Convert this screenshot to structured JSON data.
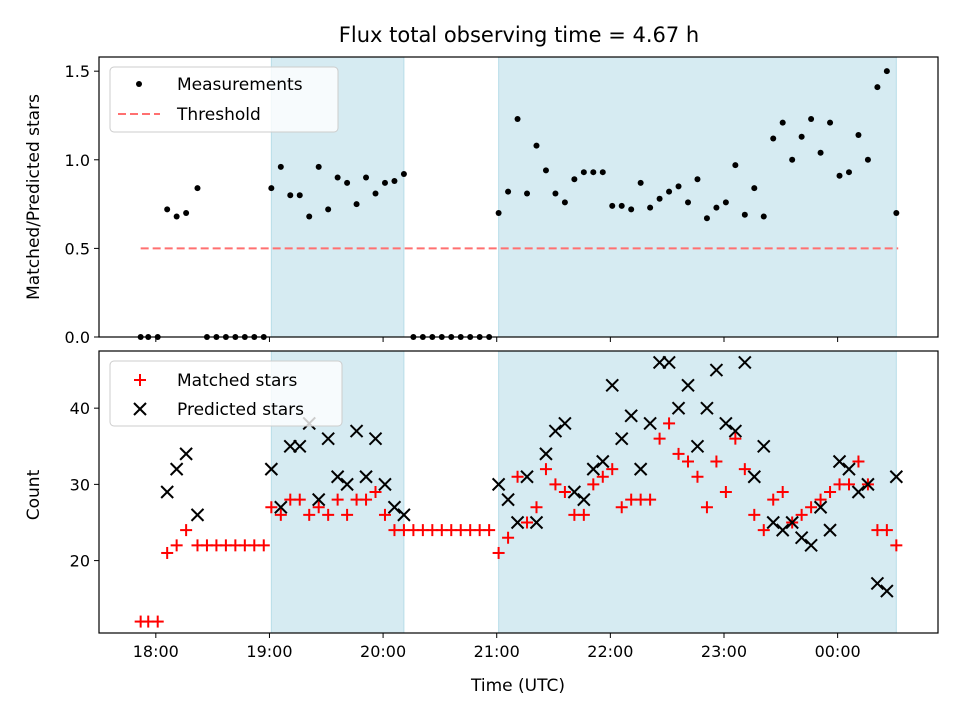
{
  "chart_data": [
    {
      "type": "scatter",
      "title": "Flux total observing time = 4.67 h",
      "ylabel": "Matched/Predicted stars",
      "xlabel": "",
      "ylim": [
        0,
        1.58
      ],
      "yticks": [
        0.0,
        0.5,
        1.0,
        1.5
      ],
      "ytick_labels": [
        "0.0",
        "0.5",
        "1.0",
        "1.5"
      ],
      "legend": {
        "placement": "top-left",
        "entries": [
          "Measurements",
          "Threshold"
        ]
      },
      "threshold": {
        "name": "Threshold",
        "y": 0.5,
        "x_range": [
          "17:52",
          "00:32"
        ],
        "color": "#ff7070",
        "style": "dashed"
      },
      "series": [
        {
          "name": "Measurements",
          "marker": "dot",
          "color": "#000000",
          "points": [
            [
              "17:52",
              0
            ],
            [
              "17:56",
              0
            ],
            [
              "18:01",
              0
            ],
            [
              "18:06",
              0.72
            ],
            [
              "18:11",
              0.68
            ],
            [
              "18:16",
              0.7
            ],
            [
              "18:22",
              0.84
            ],
            [
              "18:27",
              0
            ],
            [
              "18:32",
              0
            ],
            [
              "18:37",
              0
            ],
            [
              "18:42",
              0
            ],
            [
              "18:47",
              0
            ],
            [
              "18:52",
              0
            ],
            [
              "18:57",
              0
            ],
            [
              "19:01",
              0.84
            ],
            [
              "19:06",
              0.96
            ],
            [
              "19:11",
              0.8
            ],
            [
              "19:16",
              0.8
            ],
            [
              "19:21",
              0.68
            ],
            [
              "19:26",
              0.96
            ],
            [
              "19:31",
              0.72
            ],
            [
              "19:36",
              0.9
            ],
            [
              "19:41",
              0.87
            ],
            [
              "19:46",
              0.75
            ],
            [
              "19:51",
              0.9
            ],
            [
              "19:56",
              0.81
            ],
            [
              "20:01",
              0.87
            ],
            [
              "20:06",
              0.88
            ],
            [
              "20:11",
              0.92
            ],
            [
              "20:16",
              0
            ],
            [
              "20:21",
              0
            ],
            [
              "20:26",
              0
            ],
            [
              "20:31",
              0
            ],
            [
              "20:36",
              0
            ],
            [
              "20:41",
              0
            ],
            [
              "20:46",
              0
            ],
            [
              "20:51",
              0
            ],
            [
              "20:56",
              0
            ],
            [
              "21:01",
              0.7
            ],
            [
              "21:06",
              0.82
            ],
            [
              "21:11",
              1.23
            ],
            [
              "21:16",
              0.81
            ],
            [
              "21:21",
              1.08
            ],
            [
              "21:26",
              0.94
            ],
            [
              "21:31",
              0.81
            ],
            [
              "21:36",
              0.76
            ],
            [
              "21:41",
              0.89
            ],
            [
              "21:46",
              0.93
            ],
            [
              "21:51",
              0.93
            ],
            [
              "21:56",
              0.93
            ],
            [
              "22:01",
              0.74
            ],
            [
              "22:06",
              0.74
            ],
            [
              "22:11",
              0.72
            ],
            [
              "22:16",
              0.87
            ],
            [
              "22:21",
              0.73
            ],
            [
              "22:26",
              0.78
            ],
            [
              "22:31",
              0.82
            ],
            [
              "22:36",
              0.85
            ],
            [
              "22:41",
              0.76
            ],
            [
              "22:46",
              0.89
            ],
            [
              "22:51",
              0.67
            ],
            [
              "22:56",
              0.73
            ],
            [
              "23:01",
              0.76
            ],
            [
              "23:06",
              0.97
            ],
            [
              "23:11",
              0.69
            ],
            [
              "23:16",
              0.84
            ],
            [
              "23:21",
              0.68
            ],
            [
              "23:26",
              1.12
            ],
            [
              "23:31",
              1.21
            ],
            [
              "23:36",
              1.0
            ],
            [
              "23:41",
              1.13
            ],
            [
              "23:46",
              1.23
            ],
            [
              "23:51",
              1.04
            ],
            [
              "23:56",
              1.21
            ],
            [
              "00:01",
              0.91
            ],
            [
              "00:06",
              0.93
            ],
            [
              "00:11",
              1.14
            ],
            [
              "00:16",
              1.0
            ],
            [
              "00:21",
              1.41
            ],
            [
              "00:26",
              1.5
            ],
            [
              "00:31",
              0.7
            ]
          ]
        }
      ]
    },
    {
      "type": "scatter",
      "title": "",
      "ylabel": "Count",
      "xlabel": "Time (UTC)",
      "ylim": [
        10.5,
        47.5
      ],
      "yticks": [
        20,
        30,
        40
      ],
      "ytick_labels": [
        "20",
        "30",
        "40"
      ],
      "xticks": [
        "18:00",
        "19:00",
        "20:00",
        "21:00",
        "22:00",
        "23:00",
        "00:00"
      ],
      "xlim": [
        "17:30",
        "00:53"
      ],
      "legend": {
        "placement": "top-left",
        "entries": [
          "Matched stars",
          "Predicted stars"
        ]
      },
      "shaded_intervals": [
        [
          "19:01",
          "20:11"
        ],
        [
          "21:01",
          "00:31"
        ]
      ],
      "series": [
        {
          "name": "Matched stars",
          "marker": "plus",
          "color": "#ff0000",
          "points": [
            [
              "17:52",
              12
            ],
            [
              "17:56",
              12
            ],
            [
              "18:01",
              12
            ],
            [
              "18:06",
              21
            ],
            [
              "18:11",
              22
            ],
            [
              "18:16",
              24
            ],
            [
              "18:22",
              22
            ],
            [
              "18:27",
              22
            ],
            [
              "18:32",
              22
            ],
            [
              "18:37",
              22
            ],
            [
              "18:42",
              22
            ],
            [
              "18:47",
              22
            ],
            [
              "18:52",
              22
            ],
            [
              "18:57",
              22
            ],
            [
              "19:01",
              27
            ],
            [
              "19:06",
              26
            ],
            [
              "19:11",
              28
            ],
            [
              "19:16",
              28
            ],
            [
              "19:21",
              26
            ],
            [
              "19:26",
              27
            ],
            [
              "19:31",
              26
            ],
            [
              "19:36",
              28
            ],
            [
              "19:41",
              26
            ],
            [
              "19:46",
              28
            ],
            [
              "19:51",
              28
            ],
            [
              "19:56",
              29
            ],
            [
              "20:01",
              26
            ],
            [
              "20:06",
              24
            ],
            [
              "20:11",
              24
            ],
            [
              "20:16",
              24
            ],
            [
              "20:21",
              24
            ],
            [
              "20:26",
              24
            ],
            [
              "20:31",
              24
            ],
            [
              "20:36",
              24
            ],
            [
              "20:41",
              24
            ],
            [
              "20:46",
              24
            ],
            [
              "20:51",
              24
            ],
            [
              "20:56",
              24
            ],
            [
              "21:01",
              21
            ],
            [
              "21:06",
              23
            ],
            [
              "21:11",
              31
            ],
            [
              "21:16",
              25
            ],
            [
              "21:21",
              27
            ],
            [
              "21:26",
              32
            ],
            [
              "21:31",
              30
            ],
            [
              "21:36",
              29
            ],
            [
              "21:41",
              26
            ],
            [
              "21:46",
              26
            ],
            [
              "21:51",
              30
            ],
            [
              "21:56",
              31
            ],
            [
              "22:01",
              32
            ],
            [
              "22:06",
              27
            ],
            [
              "22:11",
              28
            ],
            [
              "22:16",
              28
            ],
            [
              "22:21",
              28
            ],
            [
              "22:26",
              36
            ],
            [
              "22:31",
              38
            ],
            [
              "22:36",
              34
            ],
            [
              "22:41",
              33
            ],
            [
              "22:46",
              31
            ],
            [
              "22:51",
              27
            ],
            [
              "22:56",
              33
            ],
            [
              "23:01",
              29
            ],
            [
              "23:06",
              36
            ],
            [
              "23:11",
              32
            ],
            [
              "23:16",
              26
            ],
            [
              "23:21",
              24
            ],
            [
              "23:26",
              28
            ],
            [
              "23:31",
              29
            ],
            [
              "23:36",
              25
            ],
            [
              "23:41",
              26
            ],
            [
              "23:46",
              27
            ],
            [
              "23:51",
              28
            ],
            [
              "23:56",
              29
            ],
            [
              "00:01",
              30
            ],
            [
              "00:06",
              30
            ],
            [
              "00:11",
              33
            ],
            [
              "00:16",
              30
            ],
            [
              "00:21",
              24
            ],
            [
              "00:26",
              24
            ],
            [
              "00:31",
              22
            ]
          ]
        },
        {
          "name": "Predicted stars",
          "marker": "x",
          "color": "#000000",
          "points": [
            [
              "18:06",
              29
            ],
            [
              "18:11",
              32
            ],
            [
              "18:16",
              34
            ],
            [
              "18:22",
              26
            ],
            [
              "19:01",
              32
            ],
            [
              "19:06",
              27
            ],
            [
              "19:11",
              35
            ],
            [
              "19:16",
              35
            ],
            [
              "19:21",
              38
            ],
            [
              "19:26",
              28
            ],
            [
              "19:31",
              36
            ],
            [
              "19:36",
              31
            ],
            [
              "19:41",
              30
            ],
            [
              "19:46",
              37
            ],
            [
              "19:51",
              31
            ],
            [
              "19:56",
              36
            ],
            [
              "20:01",
              30
            ],
            [
              "20:06",
              27
            ],
            [
              "20:11",
              26
            ],
            [
              "21:01",
              30
            ],
            [
              "21:06",
              28
            ],
            [
              "21:11",
              25
            ],
            [
              "21:16",
              31
            ],
            [
              "21:21",
              25
            ],
            [
              "21:26",
              34
            ],
            [
              "21:31",
              37
            ],
            [
              "21:36",
              38
            ],
            [
              "21:41",
              29
            ],
            [
              "21:46",
              28
            ],
            [
              "21:51",
              32
            ],
            [
              "21:56",
              33
            ],
            [
              "22:01",
              43
            ],
            [
              "22:06",
              36
            ],
            [
              "22:11",
              39
            ],
            [
              "22:16",
              32
            ],
            [
              "22:21",
              38
            ],
            [
              "22:26",
              46
            ],
            [
              "22:31",
              46
            ],
            [
              "22:36",
              40
            ],
            [
              "22:41",
              43
            ],
            [
              "22:46",
              35
            ],
            [
              "22:51",
              40
            ],
            [
              "22:56",
              45
            ],
            [
              "23:01",
              38
            ],
            [
              "23:06",
              37
            ],
            [
              "23:11",
              46
            ],
            [
              "23:16",
              31
            ],
            [
              "23:21",
              35
            ],
            [
              "23:26",
              25
            ],
            [
              "23:31",
              24
            ],
            [
              "23:36",
              25
            ],
            [
              "23:41",
              23
            ],
            [
              "23:46",
              22
            ],
            [
              "23:51",
              27
            ],
            [
              "23:56",
              24
            ],
            [
              "00:01",
              33
            ],
            [
              "00:06",
              32
            ],
            [
              "00:11",
              29
            ],
            [
              "00:16",
              30
            ],
            [
              "00:21",
              17
            ],
            [
              "00:26",
              16
            ],
            [
              "00:31",
              31
            ]
          ]
        }
      ]
    }
  ],
  "style": {
    "shade_color": "#add8e6",
    "shade_opacity": 0.5
  }
}
